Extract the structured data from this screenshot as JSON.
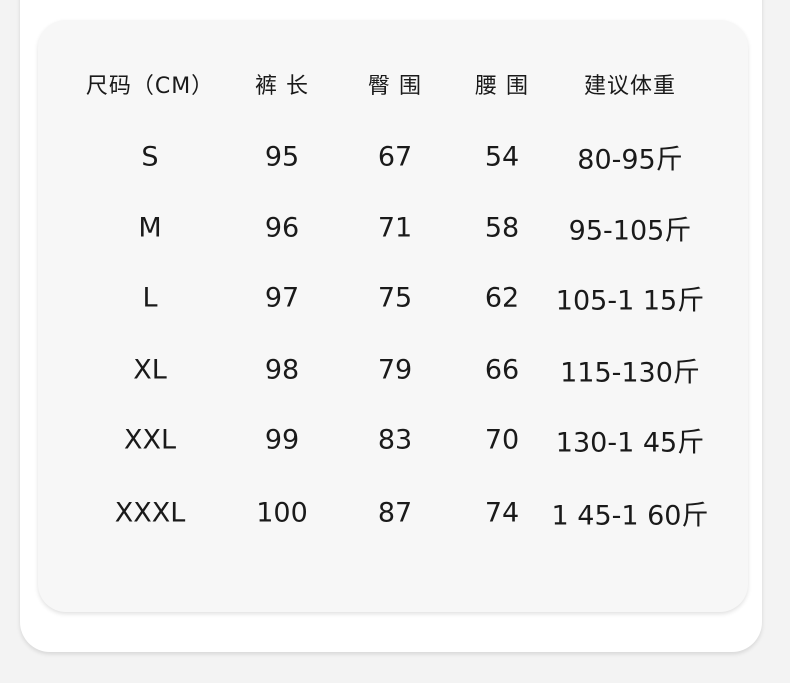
{
  "table": {
    "headers": [
      "尺码（CM）",
      "裤 长",
      "臀 围",
      "腰 围",
      "建议体重"
    ],
    "rows": [
      [
        "S",
        "95",
        "67",
        "54",
        "80-95斤"
      ],
      [
        "M",
        "96",
        "71",
        "58",
        "95-105斤"
      ],
      [
        "L",
        "97",
        "75",
        "62",
        "105-1 15斤"
      ],
      [
        "XL",
        "98",
        "79",
        "66",
        "115-130斤"
      ],
      [
        "XXL",
        "99",
        "83",
        "70",
        "130-1 45斤"
      ],
      [
        "XXXL",
        "100",
        "87",
        "74",
        "1 45-1 60斤"
      ]
    ]
  }
}
